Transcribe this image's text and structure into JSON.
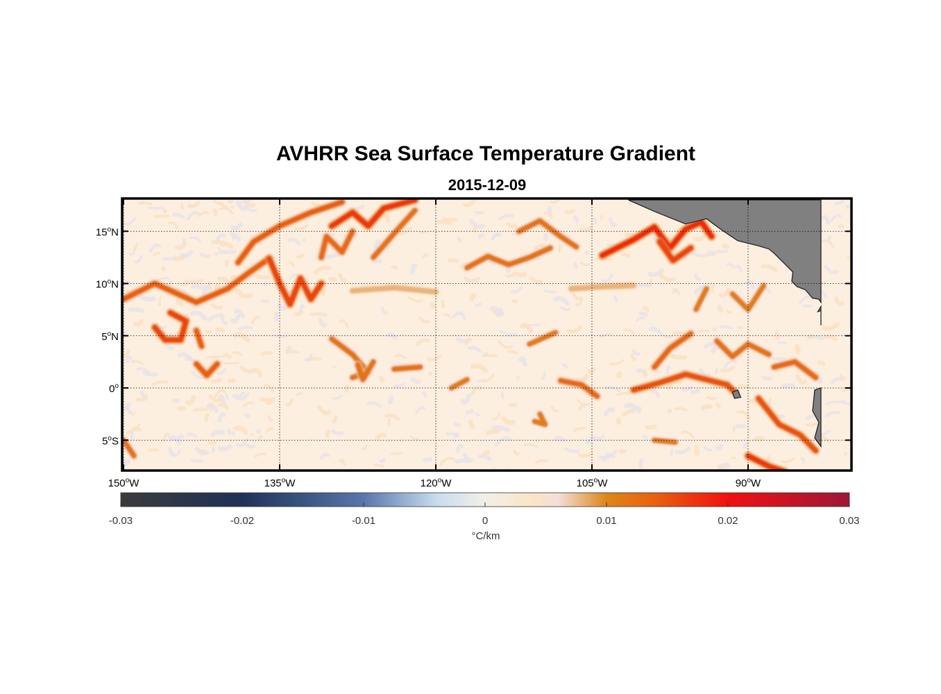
{
  "title": "AVHRR Sea Surface Temperature Gradient",
  "subtitle": "2015-12-09",
  "map": {
    "lon_range": [
      -150,
      -83
    ],
    "lat_range": [
      -8,
      18
    ],
    "lat_ticks": [
      {
        "value": 15,
        "num": "15",
        "hemi": "N"
      },
      {
        "value": 10,
        "num": "10",
        "hemi": "N"
      },
      {
        "value": 5,
        "num": "5",
        "hemi": "N"
      },
      {
        "value": 0,
        "num": "0",
        "hemi": ""
      },
      {
        "value": -5,
        "num": "5",
        "hemi": "S"
      }
    ],
    "lon_ticks": [
      {
        "value": -150,
        "num": "150",
        "hemi": "W"
      },
      {
        "value": -135,
        "num": "135",
        "hemi": "W"
      },
      {
        "value": -120,
        "num": "120",
        "hemi": "W"
      },
      {
        "value": -105,
        "num": "105",
        "hemi": "W"
      },
      {
        "value": -90,
        "num": "90",
        "hemi": "W"
      }
    ],
    "land_color": "#808080",
    "ocean_color": "#fcefdf",
    "grid_style": "dotted"
  },
  "colorbar": {
    "range": [
      -0.03,
      0.03
    ],
    "ticks": [
      "-0.03",
      "-0.02",
      "-0.01",
      "0",
      "0.01",
      "0.02",
      "0.03"
    ],
    "unit": "°C/km",
    "stops": [
      {
        "value": -0.03,
        "color": "#3b3b3b"
      },
      {
        "value": -0.02,
        "color": "#1f3158"
      },
      {
        "value": -0.01,
        "color": "#5a76aa"
      },
      {
        "value": -0.004,
        "color": "#c8dcef"
      },
      {
        "value": 0,
        "color": "#f2efe8"
      },
      {
        "value": 0.004,
        "color": "#fbe4c4"
      },
      {
        "value": 0.006,
        "color": "#f3dfdb"
      },
      {
        "value": 0.01,
        "color": "#de8618"
      },
      {
        "value": 0.014,
        "color": "#e86010"
      },
      {
        "value": 0.02,
        "color": "#f01010"
      },
      {
        "value": 0.03,
        "color": "#9c1838"
      }
    ]
  },
  "fronts": [
    {
      "points": [
        [
          -150,
          8.5
        ],
        [
          -147,
          10
        ],
        [
          -143,
          8.2
        ],
        [
          -140,
          9.5
        ],
        [
          -138,
          11
        ],
        [
          -136,
          12.4
        ]
      ],
      "value": 0.014
    },
    {
      "points": [
        [
          -136,
          12.4
        ],
        [
          -135,
          10
        ],
        [
          -134,
          8
        ],
        [
          -133,
          10.5
        ],
        [
          -132,
          8.5
        ],
        [
          -131,
          10
        ]
      ],
      "value": 0.016
    },
    {
      "points": [
        [
          -147,
          5.8
        ],
        [
          -146,
          4.6
        ],
        [
          -144.5,
          4.6
        ],
        [
          -144,
          6.4
        ],
        [
          -145.5,
          7.2
        ]
      ],
      "value": 0.016
    },
    {
      "points": [
        [
          -143,
          5.5
        ],
        [
          -142.5,
          4
        ]
      ],
      "value": 0.014
    },
    {
      "points": [
        [
          -143,
          2.3
        ],
        [
          -142,
          1.2
        ],
        [
          -141,
          2.3
        ]
      ],
      "value": 0.014
    },
    {
      "points": [
        [
          -139,
          12
        ],
        [
          -137.5,
          14
        ],
        [
          -135,
          15.5
        ],
        [
          -132,
          16.8
        ],
        [
          -129,
          17.8
        ]
      ],
      "value": 0.014
    },
    {
      "points": [
        [
          -130,
          15.5
        ],
        [
          -128,
          16.8
        ],
        [
          -126.5,
          15.5
        ],
        [
          -125,
          17.2
        ],
        [
          -122,
          18
        ]
      ],
      "value": 0.017
    },
    {
      "points": [
        [
          -131,
          12.5
        ],
        [
          -130.5,
          14.5
        ],
        [
          -129,
          13
        ],
        [
          -128,
          15
        ]
      ],
      "value": 0.013
    },
    {
      "points": [
        [
          -126,
          12.5
        ],
        [
          -124,
          14.8
        ],
        [
          -122,
          17
        ]
      ],
      "value": 0.012
    },
    {
      "points": [
        [
          -130,
          4.7
        ],
        [
          -128,
          3.2
        ],
        [
          -126.5,
          1.5
        ],
        [
          -128,
          1
        ]
      ],
      "value": 0.012
    },
    {
      "points": [
        [
          -127.5,
          2.2
        ],
        [
          -127,
          0.8
        ],
        [
          -126,
          2.5
        ]
      ],
      "value": 0.012
    },
    {
      "points": [
        [
          -124,
          1.8
        ],
        [
          -121.5,
          2
        ]
      ],
      "value": 0.012
    },
    {
      "points": [
        [
          -117,
          11.5
        ],
        [
          -115,
          12.6
        ],
        [
          -113,
          11.8
        ],
        [
          -111,
          12.5
        ],
        [
          -109,
          13.4
        ]
      ],
      "value": 0.012
    },
    {
      "points": [
        [
          -112,
          15
        ],
        [
          -110,
          16
        ],
        [
          -108,
          14.5
        ],
        [
          -106.5,
          13.5
        ]
      ],
      "value": 0.012
    },
    {
      "points": [
        [
          -104,
          12.7
        ],
        [
          -101,
          14.2
        ],
        [
          -99,
          15.4
        ],
        [
          -97.5,
          13.4
        ],
        [
          -96,
          15.2
        ],
        [
          -94.5,
          15.9
        ],
        [
          -93.5,
          14.5
        ]
      ],
      "value": 0.018
    },
    {
      "points": [
        [
          -98.5,
          14
        ],
        [
          -97.2,
          12.2
        ],
        [
          -95.5,
          13.4
        ]
      ],
      "value": 0.016
    },
    {
      "points": [
        [
          -111,
          4.2
        ],
        [
          -108.5,
          5.3
        ]
      ],
      "value": 0.011
    },
    {
      "points": [
        [
          -108,
          0.7
        ],
        [
          -106,
          0.3
        ],
        [
          -104.5,
          -0.8
        ]
      ],
      "value": 0.013
    },
    {
      "points": [
        [
          -118.5,
          0
        ],
        [
          -117,
          0.8
        ]
      ],
      "value": 0.011
    },
    {
      "points": [
        [
          -101,
          -0.2
        ],
        [
          -98.5,
          0.5
        ],
        [
          -96,
          1.3
        ],
        [
          -92,
          0.3
        ],
        [
          -91.2,
          -0.5
        ]
      ],
      "value": 0.015
    },
    {
      "points": [
        [
          -99,
          2
        ],
        [
          -97.5,
          3.8
        ],
        [
          -95.5,
          5.2
        ]
      ],
      "value": 0.013
    },
    {
      "points": [
        [
          -93,
          4.5
        ],
        [
          -91.5,
          3
        ],
        [
          -90,
          4.2
        ],
        [
          -88,
          3.2
        ]
      ],
      "value": 0.012
    },
    {
      "points": [
        [
          -87.5,
          2
        ],
        [
          -85.5,
          2.5
        ],
        [
          -83.5,
          1
        ]
      ],
      "value": 0.013
    },
    {
      "points": [
        [
          -89,
          -1
        ],
        [
          -87,
          -3.5
        ],
        [
          -85,
          -4.5
        ],
        [
          -83.5,
          -6
        ]
      ],
      "value": 0.015
    },
    {
      "points": [
        [
          -90,
          -6.5
        ],
        [
          -88,
          -7.5
        ],
        [
          -86.5,
          -8
        ]
      ],
      "value": 0.017
    },
    {
      "points": [
        [
          -91.5,
          9
        ],
        [
          -90,
          7.5
        ],
        [
          -88.5,
          9.8
        ]
      ],
      "value": 0.011
    },
    {
      "points": [
        [
          -95,
          7.5
        ],
        [
          -94,
          9.5
        ]
      ],
      "value": 0.011
    },
    {
      "points": [
        [
          -110,
          -2.5
        ],
        [
          -109.5,
          -3.5
        ],
        [
          -110.5,
          -3.2
        ]
      ],
      "value": 0.011
    },
    {
      "points": [
        [
          -99,
          -5
        ],
        [
          -97,
          -5.2
        ]
      ],
      "value": 0.011
    },
    {
      "points": [
        [
          -150,
          -5
        ],
        [
          -149,
          -6.5
        ]
      ],
      "value": 0.012
    },
    {
      "points": [
        [
          -107,
          9.5
        ],
        [
          -104,
          9.7
        ],
        [
          -101,
          9.8
        ]
      ],
      "value": 0.008
    },
    {
      "points": [
        [
          -128,
          9.3
        ],
        [
          -124,
          9.6
        ],
        [
          -120,
          9.2
        ]
      ],
      "value": 0.008
    }
  ],
  "land": [
    {
      "name": "central-america",
      "points": [
        [
          -101.5,
          18
        ],
        [
          -99,
          16.9
        ],
        [
          -96,
          15.7
        ],
        [
          -94,
          16.2
        ],
        [
          -92.5,
          15.1
        ],
        [
          -91,
          14.1
        ],
        [
          -89,
          13.6
        ],
        [
          -88,
          13.3
        ],
        [
          -87.5,
          12.9
        ],
        [
          -86.5,
          11.9
        ],
        [
          -85.7,
          11.1
        ],
        [
          -85.8,
          10.2
        ],
        [
          -85.3,
          9.7
        ],
        [
          -84.5,
          9.4
        ],
        [
          -83.8,
          8.6
        ],
        [
          -83.2,
          8.5
        ],
        [
          -83,
          8.2
        ],
        [
          -83,
          18
        ]
      ]
    },
    {
      "name": "south-america",
      "points": [
        [
          -83,
          6
        ],
        [
          -83,
          7.8
        ],
        [
          -83.3,
          7.3
        ],
        [
          -83,
          7.4
        ]
      ]
    },
    {
      "name": "ecuador-coast",
      "points": [
        [
          -83,
          0
        ],
        [
          -83.6,
          -0.2
        ],
        [
          -83.8,
          -2.2
        ],
        [
          -83.2,
          -3.3
        ],
        [
          -83.6,
          -4.8
        ],
        [
          -83,
          -5.6
        ]
      ]
    },
    {
      "name": "galapagos",
      "points": [
        [
          -91.5,
          -0.4
        ],
        [
          -91,
          -0.2
        ],
        [
          -90.7,
          -0.9
        ],
        [
          -91.3,
          -1.0
        ]
      ]
    }
  ]
}
